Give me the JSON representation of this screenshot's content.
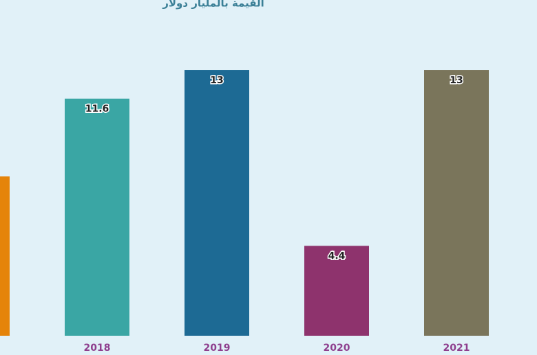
{
  "chart_data": {
    "type": "bar",
    "title": "القيمة بالمليار دولار",
    "categories": [
      null,
      "2018",
      "2019",
      "2020",
      "2021"
    ],
    "values": [
      7.8,
      11.6,
      13,
      4.4,
      13
    ],
    "colors": [
      "#e5840a",
      "#3aa6a4",
      "#1d6a94",
      "#8e336d",
      "#7a755b"
    ],
    "ylim": [
      0,
      13
    ]
  }
}
